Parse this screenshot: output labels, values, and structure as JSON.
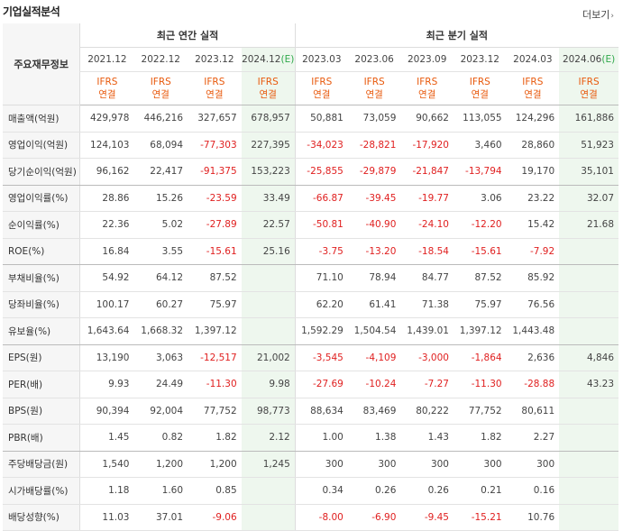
{
  "header": {
    "title": "기업실적분석",
    "more": "더보기"
  },
  "corner_label": "주요재무정보",
  "groups": {
    "annual": "최근 연간 실적",
    "quarter": "최근 분기 실적"
  },
  "periods": [
    {
      "label": "2021.12",
      "est": false
    },
    {
      "label": "2022.12",
      "est": false
    },
    {
      "label": "2023.12",
      "est": false
    },
    {
      "label": "2024.12",
      "est": true,
      "est_mark": "(E)"
    },
    {
      "label": "2023.03",
      "est": false
    },
    {
      "label": "2023.06",
      "est": false
    },
    {
      "label": "2023.09",
      "est": false
    },
    {
      "label": "2023.12",
      "est": false
    },
    {
      "label": "2024.03",
      "est": false
    },
    {
      "label": "2024.06",
      "est": true,
      "est_mark": "(E)"
    }
  ],
  "report_type": {
    "line1": "IFRS",
    "line2": "연결"
  },
  "rows": [
    {
      "label": "매출액(억원)",
      "values": [
        "429,978",
        "446,216",
        "327,657",
        "678,957",
        "50,881",
        "73,059",
        "90,662",
        "113,055",
        "124,296",
        "161,886"
      ]
    },
    {
      "label": "영업이익(억원)",
      "values": [
        "124,103",
        "68,094",
        "-77,303",
        "227,395",
        "-34,023",
        "-28,821",
        "-17,920",
        "3,460",
        "28,860",
        "51,923"
      ]
    },
    {
      "label": "당기순이익(억원)",
      "values": [
        "96,162",
        "22,417",
        "-91,375",
        "153,223",
        "-25,855",
        "-29,879",
        "-21,847",
        "-13,794",
        "19,170",
        "35,101"
      ],
      "sep": true
    },
    {
      "label": "영업이익률(%)",
      "values": [
        "28.86",
        "15.26",
        "-23.59",
        "33.49",
        "-66.87",
        "-39.45",
        "-19.77",
        "3.06",
        "23.22",
        "32.07"
      ]
    },
    {
      "label": "순이익률(%)",
      "values": [
        "22.36",
        "5.02",
        "-27.89",
        "22.57",
        "-50.81",
        "-40.90",
        "-24.10",
        "-12.20",
        "15.42",
        "21.68"
      ]
    },
    {
      "label": "ROE(%)",
      "values": [
        "16.84",
        "3.55",
        "-15.61",
        "25.16",
        "-3.75",
        "-13.20",
        "-18.54",
        "-15.61",
        "-7.92",
        ""
      ],
      "sep": true
    },
    {
      "label": "부채비율(%)",
      "values": [
        "54.92",
        "64.12",
        "87.52",
        "",
        "71.10",
        "78.94",
        "84.77",
        "87.52",
        "85.92",
        ""
      ]
    },
    {
      "label": "당좌비율(%)",
      "values": [
        "100.17",
        "60.27",
        "75.97",
        "",
        "62.20",
        "61.41",
        "71.38",
        "75.97",
        "76.56",
        ""
      ]
    },
    {
      "label": "유보율(%)",
      "values": [
        "1,643.64",
        "1,668.32",
        "1,397.12",
        "",
        "1,592.29",
        "1,504.54",
        "1,439.01",
        "1,397.12",
        "1,443.48",
        ""
      ],
      "sep": true
    },
    {
      "label": "EPS(원)",
      "values": [
        "13,190",
        "3,063",
        "-12,517",
        "21,002",
        "-3,545",
        "-4,109",
        "-3,000",
        "-1,864",
        "2,636",
        "4,846"
      ]
    },
    {
      "label": "PER(배)",
      "values": [
        "9.93",
        "24.49",
        "-11.30",
        "9.98",
        "-27.69",
        "-10.24",
        "-7.27",
        "-11.30",
        "-28.88",
        "43.23"
      ]
    },
    {
      "label": "BPS(원)",
      "values": [
        "90,394",
        "92,004",
        "77,752",
        "98,773",
        "88,634",
        "83,469",
        "80,222",
        "77,752",
        "80,611",
        ""
      ]
    },
    {
      "label": "PBR(배)",
      "values": [
        "1.45",
        "0.82",
        "1.82",
        "2.12",
        "1.00",
        "1.38",
        "1.43",
        "1.82",
        "2.27",
        ""
      ],
      "sep": true
    },
    {
      "label": "주당배당금(원)",
      "values": [
        "1,540",
        "1,200",
        "1,200",
        "1,245",
        "300",
        "300",
        "300",
        "300",
        "300",
        ""
      ]
    },
    {
      "label": "시가배당률(%)",
      "values": [
        "1.18",
        "1.60",
        "0.85",
        "",
        "0.34",
        "0.26",
        "0.26",
        "0.21",
        "0.16",
        ""
      ]
    },
    {
      "label": "배당성향(%)",
      "values": [
        "11.03",
        "37.01",
        "-9.06",
        "",
        "-8.00",
        "-6.90",
        "-9.45",
        "-15.21",
        "10.76",
        ""
      ]
    }
  ]
}
